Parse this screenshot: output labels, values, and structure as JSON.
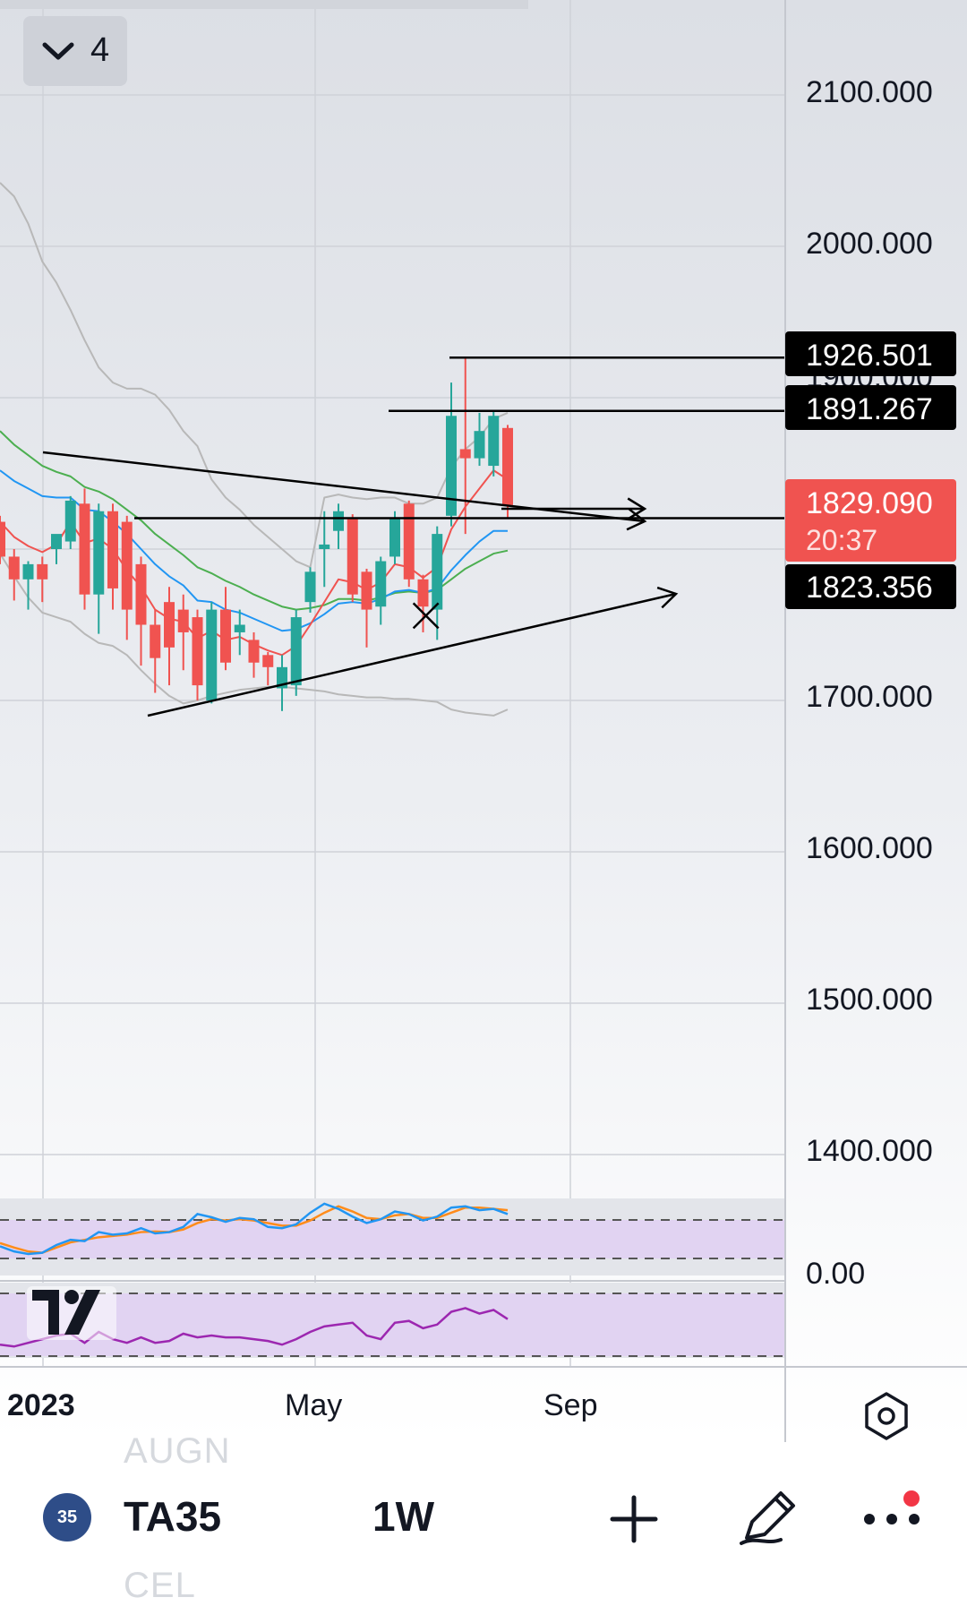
{
  "legend": {
    "collapse_icon": "chevron-down-icon",
    "indicator_count": "4"
  },
  "price_axis": {
    "ticks": [
      "2100.000",
      "2000.000",
      "1700.000",
      "1600.000",
      "1500.000",
      "1400.000"
    ],
    "hidden_label": "1900.000",
    "labels": [
      {
        "text": "1926.501",
        "value": 1926.501,
        "bg": "#000000"
      },
      {
        "text": "1891.267",
        "value": 1891.267,
        "bg": "#000000"
      },
      {
        "text": "1823.356",
        "value": 1823.356,
        "bg": "#000000"
      }
    ],
    "last_price": {
      "text": "1829.090",
      "countdown": "20:37",
      "value": 1829.09,
      "bg": "#f05350"
    },
    "oscillator_tick": "0.00"
  },
  "time_axis": {
    "labels": [
      "2023",
      "May",
      "Sep"
    ],
    "settings_icon": "hexagon-settings-icon"
  },
  "logo": "tradingview-logo",
  "toolbar": {
    "symbol_badge": "35",
    "symbol": "TA35",
    "interval": "1W",
    "add_icon": "plus-icon",
    "draw_icon": "pen-icon",
    "more_icon": "more-dots-icon",
    "notification_color": "#f23645",
    "ghost_text_top": "AUGN",
    "ghost_text_bottom": "CEL"
  },
  "colors": {
    "up": "#26a69a",
    "down": "#f05350",
    "ema_fast": "#f05350",
    "ema_mid": "#2196f3",
    "ema_slow": "#4caf50",
    "bands": "#b8b8b8",
    "stoch_k": "#2196f3",
    "stoch_d": "#ff8c1a",
    "rsi": "#9c27b0",
    "osc_band": "#e1d3f2"
  },
  "chart_data": {
    "type": "candlestick",
    "ylim": [
      1350,
      2160
    ],
    "candles": [
      {
        "o": 1818,
        "h": 1822,
        "l": 1790,
        "c": 1795
      },
      {
        "o": 1795,
        "h": 1800,
        "l": 1766,
        "c": 1780
      },
      {
        "o": 1780,
        "h": 1792,
        "l": 1760,
        "c": 1790
      },
      {
        "o": 1790,
        "h": 1795,
        "l": 1765,
        "c": 1780
      },
      {
        "o": 1800,
        "h": 1808,
        "l": 1790,
        "c": 1810
      },
      {
        "o": 1805,
        "h": 1835,
        "l": 1800,
        "c": 1832
      },
      {
        "o": 1830,
        "h": 1840,
        "l": 1760,
        "c": 1770
      },
      {
        "o": 1770,
        "h": 1830,
        "l": 1744,
        "c": 1825
      },
      {
        "o": 1825,
        "h": 1830,
        "l": 1760,
        "c": 1774
      },
      {
        "o": 1818,
        "h": 1822,
        "l": 1740,
        "c": 1760
      },
      {
        "o": 1790,
        "h": 1795,
        "l": 1723,
        "c": 1750
      },
      {
        "o": 1750,
        "h": 1760,
        "l": 1705,
        "c": 1728
      },
      {
        "o": 1765,
        "h": 1775,
        "l": 1710,
        "c": 1735
      },
      {
        "o": 1760,
        "h": 1770,
        "l": 1720,
        "c": 1745
      },
      {
        "o": 1755,
        "h": 1760,
        "l": 1700,
        "c": 1710
      },
      {
        "o": 1700,
        "h": 1765,
        "l": 1698,
        "c": 1760
      },
      {
        "o": 1760,
        "h": 1775,
        "l": 1720,
        "c": 1725
      },
      {
        "o": 1745,
        "h": 1760,
        "l": 1730,
        "c": 1750
      },
      {
        "o": 1740,
        "h": 1745,
        "l": 1715,
        "c": 1725
      },
      {
        "o": 1730,
        "h": 1732,
        "l": 1710,
        "c": 1722
      },
      {
        "o": 1708,
        "h": 1730,
        "l": 1693,
        "c": 1722
      },
      {
        "o": 1710,
        "h": 1760,
        "l": 1703,
        "c": 1755
      },
      {
        "o": 1765,
        "h": 1788,
        "l": 1758,
        "c": 1785
      },
      {
        "o": 1800,
        "h": 1825,
        "l": 1775,
        "c": 1803
      },
      {
        "o": 1812,
        "h": 1830,
        "l": 1800,
        "c": 1825
      },
      {
        "o": 1820,
        "h": 1823,
        "l": 1765,
        "c": 1770
      },
      {
        "o": 1785,
        "h": 1787,
        "l": 1735,
        "c": 1760
      },
      {
        "o": 1762,
        "h": 1795,
        "l": 1750,
        "c": 1792
      },
      {
        "o": 1795,
        "h": 1825,
        "l": 1790,
        "c": 1820
      },
      {
        "o": 1830,
        "h": 1832,
        "l": 1775,
        "c": 1780
      },
      {
        "o": 1780,
        "h": 1783,
        "l": 1745,
        "c": 1762
      },
      {
        "o": 1760,
        "h": 1815,
        "l": 1740,
        "c": 1810
      },
      {
        "o": 1822,
        "h": 1910,
        "l": 1815,
        "c": 1888
      },
      {
        "o": 1866,
        "h": 1926.501,
        "l": 1810,
        "c": 1860
      },
      {
        "o": 1860,
        "h": 1890,
        "l": 1855,
        "c": 1878
      },
      {
        "o": 1855,
        "h": 1891.267,
        "l": 1848,
        "c": 1888
      },
      {
        "o": 1880,
        "h": 1882,
        "l": 1820,
        "c": 1829.09
      }
    ],
    "upper_band": [
      2042,
      2033,
      2015,
      1990,
      1976,
      1958,
      1938,
      1920,
      1910,
      1906,
      1906,
      1902,
      1892,
      1878,
      1868,
      1846,
      1834,
      1826,
      1816,
      1808,
      1800,
      1792,
      1788,
      1834,
      1836,
      1834,
      1833,
      1834,
      1834,
      1830,
      1830,
      1834,
      1854,
      1866,
      1874,
      1886,
      1890
    ],
    "lower_band": [
      1797,
      1782,
      1768,
      1758,
      1755,
      1752,
      1744,
      1738,
      1736,
      1730,
      1720,
      1711,
      1703,
      1698,
      1700,
      1703,
      1705,
      1707,
      1708,
      1709,
      1709,
      1708,
      1707,
      1706,
      1704,
      1703,
      1702,
      1702,
      1701,
      1701,
      1700,
      1699,
      1694,
      1692,
      1691,
      1690,
      1694
    ],
    "ema_fast": [
      1818,
      1808,
      1802,
      1798,
      1803,
      1818,
      1804,
      1807,
      1800,
      1786,
      1775,
      1760,
      1754,
      1752,
      1741,
      1746,
      1740,
      1742,
      1737,
      1733,
      1730,
      1736,
      1750,
      1765,
      1780,
      1778,
      1773,
      1778,
      1790,
      1788,
      1781,
      1788,
      1813,
      1828,
      1840,
      1852,
      1846
    ],
    "ema_mid": [
      1852,
      1845,
      1840,
      1835,
      1834,
      1834,
      1826,
      1825,
      1818,
      1810,
      1800,
      1790,
      1782,
      1776,
      1766,
      1765,
      1760,
      1758,
      1754,
      1750,
      1746,
      1747,
      1751,
      1757,
      1764,
      1765,
      1764,
      1767,
      1772,
      1773,
      1771,
      1774,
      1786,
      1796,
      1805,
      1812,
      1812
    ],
    "ema_slow": [
      1878,
      1869,
      1862,
      1855,
      1851,
      1848,
      1841,
      1838,
      1833,
      1826,
      1819,
      1810,
      1803,
      1796,
      1788,
      1784,
      1779,
      1775,
      1770,
      1766,
      1762,
      1760,
      1761,
      1763,
      1767,
      1767,
      1766,
      1768,
      1771,
      1772,
      1771,
      1773,
      1780,
      1787,
      1792,
      1797,
      1799
    ],
    "horizontal_lines": [
      1926.501,
      1891.267,
      1823.356
    ],
    "trendlines": [
      {
        "points": [
          [
            1,
            1843
          ],
          [
            34.8,
            1822
          ]
        ],
        "arrow": true
      },
      {
        "points": [
          [
            9.7,
            1698
          ],
          [
            37,
            1771
          ]
        ],
        "arrow": true
      },
      {
        "points": [
          [
            9.7,
            1823.356
          ],
          [
            37,
            1823.356
          ]
        ],
        "arrow": true
      }
    ],
    "cross_marker": {
      "index": 30.2,
      "value": 1756
    },
    "stoch_k": [
      30,
      22,
      18,
      20,
      32,
      40,
      38,
      52,
      48,
      50,
      58,
      50,
      52,
      60,
      80,
      75,
      68,
      74,
      72,
      60,
      58,
      64,
      82,
      96,
      88,
      76,
      66,
      72,
      84,
      80,
      70,
      76,
      90,
      92,
      86,
      88,
      80
    ],
    "stoch_d": [
      35,
      28,
      22,
      20,
      28,
      36,
      40,
      44,
      46,
      48,
      52,
      53,
      52,
      56,
      66,
      72,
      70,
      72,
      70,
      66,
      62,
      62,
      70,
      82,
      92,
      84,
      74,
      72,
      78,
      80,
      74,
      74,
      82,
      90,
      90,
      88,
      86
    ],
    "rsi": [
      38,
      36,
      40,
      44,
      48,
      50,
      40,
      52,
      44,
      40,
      46,
      40,
      42,
      50,
      46,
      48,
      46,
      46,
      44,
      42,
      38,
      44,
      52,
      58,
      60,
      62,
      48,
      44,
      62,
      64,
      56,
      60,
      74,
      78,
      72,
      76,
      66
    ]
  }
}
